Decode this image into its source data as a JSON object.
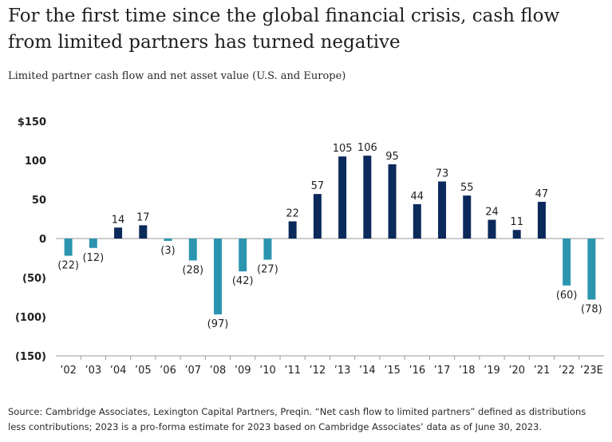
{
  "header": {
    "title": "For the first time since the global financial crisis, cash flow from limited partners has turned negative",
    "subtitle": "Limited partner cash flow and net asset value (U.S. and Europe)"
  },
  "footer": {
    "source": "Source: Cambridge Associates, Lexington Capital Partners, Preqin. “Net cash flow to limited partners” defined as distributions less contributions; 2023 is a pro-forma estimate for 2023 based on Cambridge Associates’ data as of June 30, 2023."
  },
  "colors": {
    "positive": "#0b2a5b",
    "negative": "#2b95b0",
    "axis": "#9a9a9a"
  },
  "chart_data": {
    "type": "bar",
    "title": "",
    "xlabel": "",
    "ylabel": "",
    "ylim": [
      -150,
      150
    ],
    "yticks": [
      150,
      100,
      50,
      0,
      -50,
      -100,
      -150
    ],
    "ytick_labels": [
      "$150",
      "100",
      "50",
      "0",
      "(50)",
      "(100)",
      "(150)"
    ],
    "grid": false,
    "categories": [
      "’02",
      "’03",
      "’04",
      "’05",
      "’06",
      "’07",
      "’08",
      "’09",
      "’10",
      "’11",
      "’12",
      "’13",
      "’14",
      "’15",
      "’16",
      "’17",
      "’18",
      "’19",
      "’20",
      "’21",
      "’22",
      "’23E"
    ],
    "values": [
      -22,
      -12,
      14,
      17,
      -3,
      -28,
      -97,
      -42,
      -27,
      22,
      57,
      105,
      106,
      95,
      44,
      73,
      55,
      24,
      11,
      47,
      -60,
      -78
    ],
    "data_labels": [
      "(22)",
      "(12)",
      "14",
      "17",
      "(3)",
      "(28)",
      "(97)",
      "(42)",
      "(27)",
      "22",
      "57",
      "105",
      "106",
      "95",
      "44",
      "73",
      "55",
      "24",
      "11",
      "47",
      "(60)",
      "(78)"
    ]
  }
}
